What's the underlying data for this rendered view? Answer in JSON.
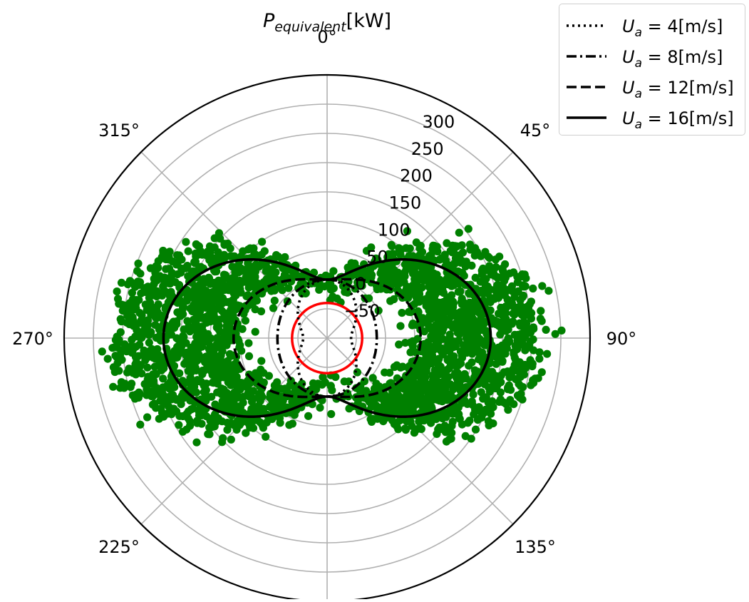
{
  "chart_data": {
    "type": "scatter",
    "projection": "polar",
    "title_base": "P",
    "title_sub": "equivalent",
    "title_unit": "[kW]",
    "theta_direction": "clockwise",
    "theta_zero": "top",
    "theta_ticks": [
      {
        "deg": 0,
        "label": "0°"
      },
      {
        "deg": 45,
        "label": "45°"
      },
      {
        "deg": 90,
        "label": "90°"
      },
      {
        "deg": 135,
        "label": "135°"
      },
      {
        "deg": 225,
        "label": "225°"
      },
      {
        "deg": 270,
        "label": "270°"
      },
      {
        "deg": 315,
        "label": "315°"
      }
    ],
    "r_range": [
      -100,
      350
    ],
    "r_ticks": [
      -50,
      0,
      50,
      100,
      150,
      200,
      250,
      300
    ],
    "r_tick_labels": [
      "−50",
      "0",
      "50",
      "100",
      "150",
      "200",
      "250",
      "300"
    ],
    "r_label_angle_deg": 22.5,
    "grid": true,
    "legend_position": "top-right",
    "series": [
      {
        "var": "U",
        "sub": "a",
        "value": "4",
        "unit": "[m/s]",
        "speed": 4,
        "style": "dotted",
        "color": "#000000"
      },
      {
        "var": "U",
        "sub": "a",
        "value": "8",
        "unit": "[m/s]",
        "speed": 8,
        "style": "dashdot",
        "color": "#000000"
      },
      {
        "var": "U",
        "sub": "a",
        "value": "12",
        "unit": "[m/s]",
        "speed": 12,
        "style": "dashed",
        "color": "#000000"
      },
      {
        "var": "U",
        "sub": "a",
        "value": "16",
        "unit": "[m/s]",
        "speed": 16,
        "style": "solid",
        "color": "#000000"
      }
    ],
    "curve_model": "r = P_max * sin^2(theta), P_max proportional to U^2",
    "curve_peaks_kw": [
      -59,
      -15,
      60,
      180
    ],
    "zero_reference": {
      "r": -40,
      "color": "#ff0000"
    },
    "scatter": {
      "color": "#008000",
      "count": 2600,
      "note": "measured equivalent power, scattered around the curves with most points inside the 16 m/s curve",
      "sample_points": [
        {
          "theta": 45,
          "r": 180
        },
        {
          "theta": 60,
          "r": 220
        },
        {
          "theta": 90,
          "r": 250
        },
        {
          "theta": 100,
          "r": 270
        },
        {
          "theta": 120,
          "r": 150
        },
        {
          "theta": 140,
          "r": 80
        },
        {
          "theta": 240,
          "r": 200
        },
        {
          "theta": 255,
          "r": 260
        },
        {
          "theta": 280,
          "r": 200
        },
        {
          "theta": 300,
          "r": 180
        },
        {
          "theta": 320,
          "r": 120
        },
        {
          "theta": 330,
          "r": 80
        }
      ]
    }
  }
}
